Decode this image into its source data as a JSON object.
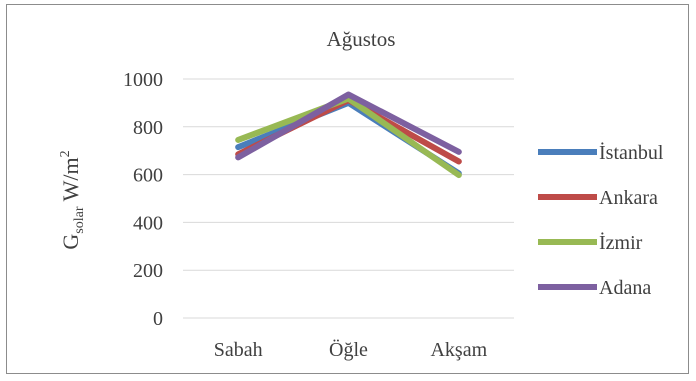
{
  "chart_data": {
    "type": "line",
    "title": "Ağustos",
    "ylabel": {
      "main": "G",
      "sub": "solar",
      "unit": "W/m",
      "sup": "2"
    },
    "categories": [
      "Sabah",
      "Öğle",
      "Akşam"
    ],
    "ylim": [
      0,
      1000
    ],
    "yticks": [
      0,
      200,
      400,
      600,
      800,
      1000
    ],
    "grid": true,
    "legend_position": "right",
    "series": [
      {
        "name": "İstanbul",
        "color": "#4a7ebb",
        "values": [
          715,
          900,
          605
        ]
      },
      {
        "name": "Ankara",
        "color": "#be4b48",
        "values": [
          685,
          912,
          655
        ]
      },
      {
        "name": "İzmir",
        "color": "#98b954",
        "values": [
          745,
          918,
          598
        ]
      },
      {
        "name": "Adana",
        "color": "#7d60a0",
        "values": [
          672,
          935,
          695
        ]
      }
    ]
  }
}
